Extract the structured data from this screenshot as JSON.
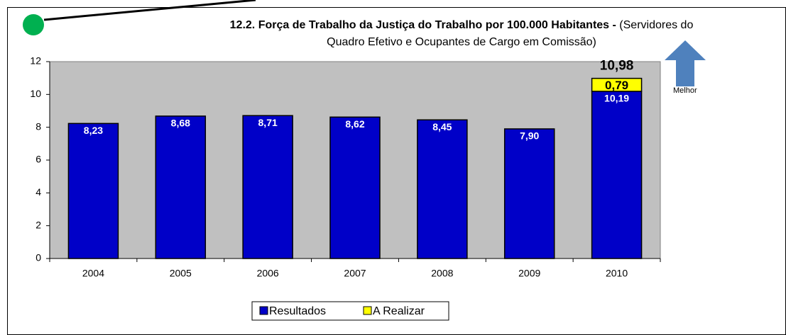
{
  "chart_data": {
    "type": "stacked_bar",
    "title": "12.2. Força de Trabalho da Justiça do Trabalho por 100.000 Habitantes -",
    "subtitle": "(Servidores do Quadro Efetivo e Ocupantes de Cargo em Comissão)",
    "categories": [
      "2004",
      "2005",
      "2006",
      "2007",
      "2008",
      "2009",
      "2010"
    ],
    "series": [
      {
        "name": "Resultados",
        "color": "#0000c8",
        "values": [
          8.23,
          8.68,
          8.71,
          8.62,
          8.45,
          7.9,
          10.19
        ],
        "value_labels": [
          "8,23",
          "8,68",
          "8,71",
          "8,62",
          "8,45",
          "7,90",
          "10,19"
        ]
      },
      {
        "name": "A Realizar",
        "color": "#ffff00",
        "values": [
          null,
          null,
          null,
          null,
          null,
          null,
          0.79
        ],
        "value_labels": [
          null,
          null,
          null,
          null,
          null,
          null,
          "0,79"
        ]
      }
    ],
    "annotations": [
      "10,98",
      "Melhor"
    ],
    "ylim": [
      0,
      12
    ],
    "yticks": [
      0,
      2,
      4,
      6,
      8,
      10,
      12
    ],
    "grid": false,
    "legend": "bottom"
  }
}
